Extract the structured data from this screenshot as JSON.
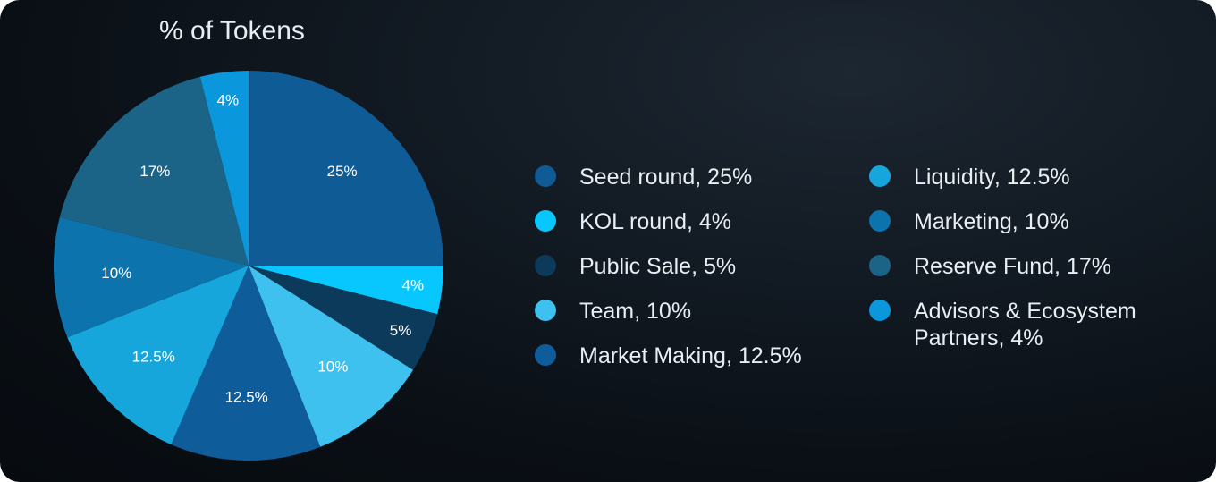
{
  "chart_data": {
    "type": "pie",
    "title": "% of Tokens",
    "slices": [
      {
        "legend": "Seed round, 25%",
        "value": 25,
        "label": "25%",
        "color": "#0f5b95"
      },
      {
        "legend": "KOL round, 4%",
        "value": 4,
        "label": "4%",
        "color": "#08c7ff"
      },
      {
        "legend": "Public Sale, 5%",
        "value": 5,
        "label": "5%",
        "color": "#0b3a5b"
      },
      {
        "legend": "Team, 10%",
        "value": 10,
        "label": "10%",
        "color": "#3ec1ee"
      },
      {
        "legend": "Market Making, 12.5%",
        "value": 12.5,
        "label": "12.5%",
        "color": "#0e5c9a"
      },
      {
        "legend": "Liquidity, 12.5%",
        "value": 12.5,
        "label": "12.5%",
        "color": "#16a6dc"
      },
      {
        "legend": "Marketing, 10%",
        "value": 10,
        "label": "10%",
        "color": "#0d73ad"
      },
      {
        "legend": "Reserve Fund, 17%",
        "value": 17,
        "label": "17%",
        "color": "#1b6487"
      },
      {
        "legend": "Advisors & Ecosystem Partners, 4%",
        "value": 4,
        "label": "4%",
        "color": "#0a97dc"
      }
    ],
    "legend_placement": "right"
  }
}
